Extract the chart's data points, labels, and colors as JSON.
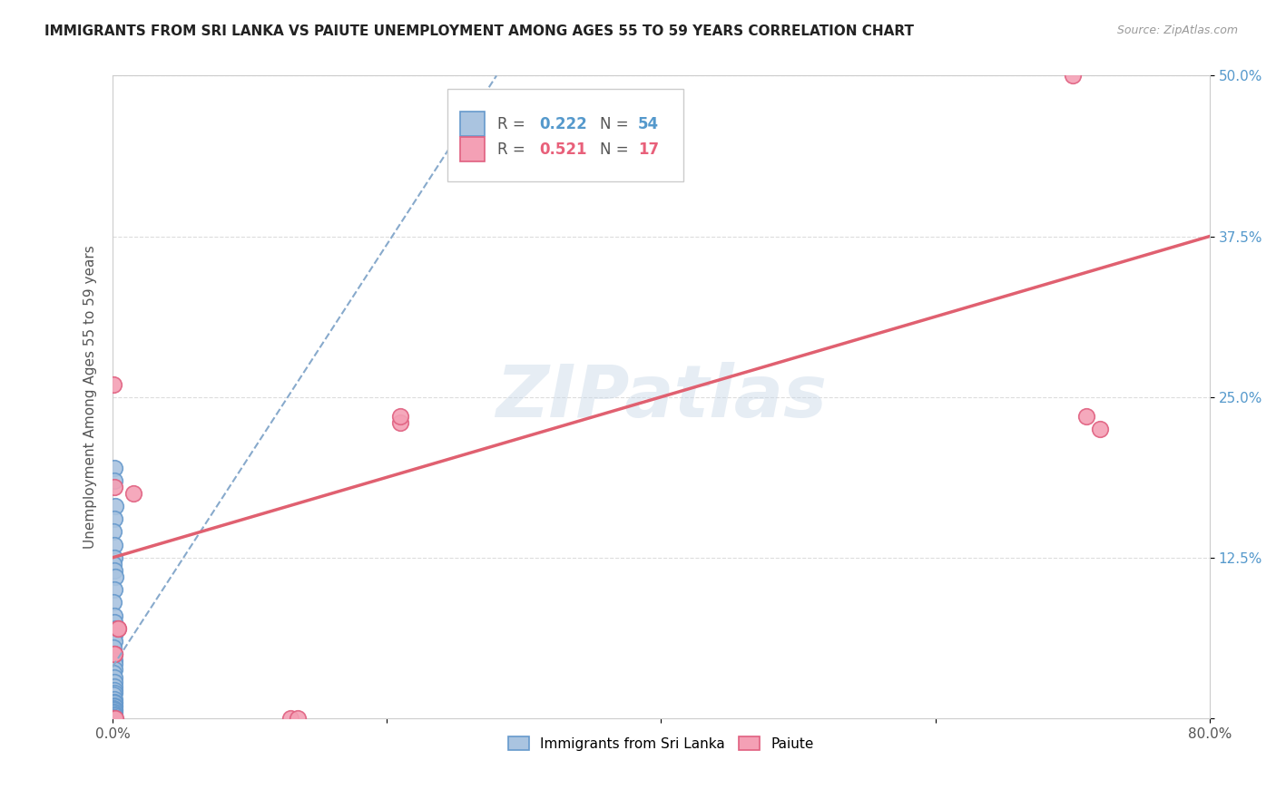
{
  "title": "IMMIGRANTS FROM SRI LANKA VS PAIUTE UNEMPLOYMENT AMONG AGES 55 TO 59 YEARS CORRELATION CHART",
  "source": "Source: ZipAtlas.com",
  "ylabel": "Unemployment Among Ages 55 to 59 years",
  "xlim": [
    0,
    0.8
  ],
  "ylim": [
    0,
    0.5
  ],
  "xticks": [
    0.0,
    0.2,
    0.4,
    0.6,
    0.8
  ],
  "xticklabels": [
    "0.0%",
    "",
    "",
    "",
    "80.0%"
  ],
  "yticks": [
    0.0,
    0.125,
    0.25,
    0.375,
    0.5
  ],
  "yticklabels": [
    "",
    "12.5%",
    "25.0%",
    "37.5%",
    "50.0%"
  ],
  "watermark": "ZIPatlas",
  "legend_blue_r": "0.222",
  "legend_blue_n": "54",
  "legend_pink_r": "0.521",
  "legend_pink_n": "17",
  "blue_scatter_x": [
    0.001,
    0.0015,
    0.002,
    0.001,
    0.0008,
    0.001,
    0.0012,
    0.0005,
    0.001,
    0.0018,
    0.001,
    0.0008,
    0.0015,
    0.001,
    0.002,
    0.0012,
    0.001,
    0.0008,
    0.0015,
    0.001,
    0.0012,
    0.001,
    0.0008,
    0.001,
    0.0015,
    0.001,
    0.0012,
    0.001,
    0.0008,
    0.001,
    0.0015,
    0.001,
    0.0012,
    0.001,
    0.0008,
    0.001,
    0.0015,
    0.001,
    0.0008,
    0.001,
    0.0012,
    0.001,
    0.0008,
    0.001,
    0.0015,
    0.001,
    0.0008,
    0.001,
    0.0012,
    0.001,
    0.0008,
    0.001,
    0.0015,
    0.001
  ],
  "blue_scatter_y": [
    0.195,
    0.185,
    0.165,
    0.155,
    0.145,
    0.135,
    0.125,
    0.12,
    0.115,
    0.11,
    0.1,
    0.09,
    0.08,
    0.075,
    0.07,
    0.065,
    0.06,
    0.055,
    0.05,
    0.045,
    0.042,
    0.038,
    0.035,
    0.032,
    0.028,
    0.025,
    0.022,
    0.02,
    0.018,
    0.015,
    0.013,
    0.012,
    0.01,
    0.009,
    0.008,
    0.007,
    0.006,
    0.005,
    0.004,
    0.003,
    0.002,
    0.001,
    0.001,
    0.0,
    0.0,
    0.0,
    0.0,
    0.0,
    0.0,
    0.0,
    0.0,
    0.0,
    0.0,
    0.0
  ],
  "pink_scatter_x": [
    0.0005,
    0.0008,
    0.001,
    0.001,
    0.001,
    0.0015,
    0.015,
    0.13,
    0.135,
    0.21,
    0.21,
    0.7,
    0.71,
    0.72,
    0.002,
    0.004,
    0.004
  ],
  "pink_scatter_y": [
    0.26,
    0.0,
    0.0,
    0.05,
    0.05,
    0.18,
    0.175,
    0.0,
    0.0,
    0.23,
    0.235,
    0.5,
    0.235,
    0.225,
    0.0,
    0.07,
    0.07
  ],
  "blue_color": "#aac4e0",
  "blue_edge": "#6699cc",
  "pink_color": "#f4a0b5",
  "pink_edge": "#e06080",
  "blue_line_color": "#88aacc",
  "pink_line_color": "#e06070",
  "background_color": "#ffffff",
  "grid_color": "#dddddd",
  "blue_line_x": [
    0.0,
    0.28
  ],
  "blue_line_y_start": 0.04,
  "blue_line_y_end": 0.5,
  "pink_line_x": [
    0.0,
    0.8
  ],
  "pink_line_y_start": 0.125,
  "pink_line_y_end": 0.375,
  "title_fontsize": 11,
  "label_fontsize": 11,
  "tick_fontsize": 11,
  "source_fontsize": 9
}
